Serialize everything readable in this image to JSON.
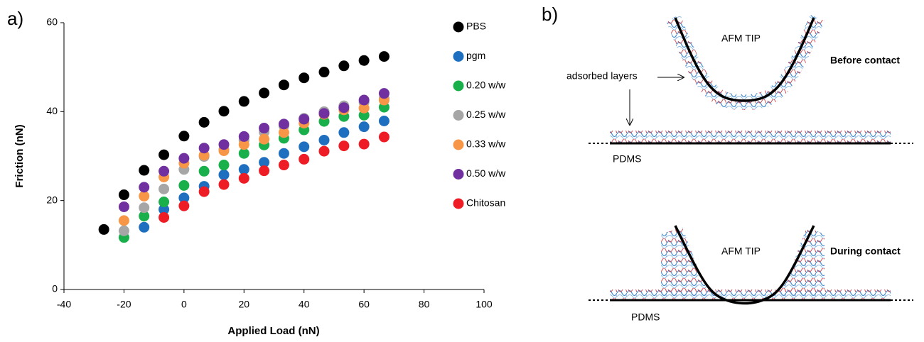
{
  "panel_labels": [
    "a)",
    "b)"
  ],
  "chart_data": {
    "type": "scatter",
    "xlabel": "Applied Load  (nN)",
    "ylabel": "Friction  (nN)",
    "xlim": [
      -40,
      100
    ],
    "xticks": [
      -40,
      -20,
      0,
      20,
      40,
      60,
      80,
      100
    ],
    "ylim": [
      0,
      60
    ],
    "yticks": [
      0,
      20,
      40,
      60
    ],
    "series": [
      {
        "name": "PBS",
        "color": "#000000",
        "x": [
          -26.7,
          -20,
          -13.3,
          -6.7,
          0,
          6.7,
          13.3,
          20,
          26.7,
          33.3,
          40,
          46.7,
          53.3,
          60,
          66.7
        ],
        "values": [
          13.5,
          21.3,
          26.8,
          30.3,
          34.5,
          37.6,
          40.1,
          42.3,
          44.2,
          46.0,
          47.6,
          48.9,
          50.3,
          51.5,
          52.4
        ]
      },
      {
        "name": "pgm",
        "color": "#1f6fc0",
        "x": [
          -13.3,
          -6.7,
          0,
          6.7,
          13.3,
          20,
          26.7,
          33.3,
          40,
          46.7,
          53.3,
          60,
          66.7
        ],
        "values": [
          14.0,
          18.0,
          20.6,
          23.2,
          25.8,
          27.0,
          28.6,
          30.6,
          32.1,
          33.6,
          35.3,
          36.6,
          37.9
        ]
      },
      {
        "name": "0.20 w/w",
        "color": "#19b04b",
        "x": [
          -20,
          -13.3,
          -6.7,
          0,
          6.7,
          13.3,
          20,
          26.7,
          33.3,
          40,
          46.7,
          53.3,
          60,
          66.7
        ],
        "values": [
          11.7,
          16.5,
          19.7,
          23.4,
          26.6,
          28.0,
          30.6,
          32.5,
          34.0,
          35.9,
          37.8,
          38.9,
          39.2,
          41.0
        ]
      },
      {
        "name": "0.25 w/w",
        "color": "#a6a6a6",
        "x": [
          -20,
          -13.3,
          -6.7,
          0,
          6.7,
          13.3,
          20,
          26.7,
          33.3,
          40,
          46.7,
          53.3,
          60,
          66.7
        ],
        "values": [
          13.2,
          18.4,
          22.6,
          27.0,
          29.9,
          31.5,
          33.6,
          35.4,
          36.8,
          38.5,
          40.0,
          41.3,
          42.1,
          43.0
        ]
      },
      {
        "name": "0.33 w/w",
        "color": "#f79646",
        "x": [
          -20,
          -13.3,
          -6.7,
          0,
          6.7,
          13.3,
          20,
          26.7,
          33.3,
          40,
          46.7,
          53.3,
          60,
          66.7
        ],
        "values": [
          15.5,
          21.0,
          25.3,
          28.4,
          30.2,
          31.2,
          32.6,
          33.8,
          35.3,
          37.4,
          39.4,
          40.4,
          40.8,
          42.6
        ]
      },
      {
        "name": "0.50 w/w",
        "color": "#7030a0",
        "x": [
          -20,
          -13.3,
          -6.7,
          0,
          6.7,
          13.3,
          20,
          26.7,
          33.3,
          40,
          46.7,
          53.3,
          60,
          66.7
        ],
        "values": [
          18.6,
          23.0,
          26.6,
          29.5,
          31.8,
          32.6,
          34.4,
          36.3,
          37.2,
          38.3,
          39.6,
          40.9,
          42.6,
          44.1
        ]
      },
      {
        "name": "Chitosan",
        "color": "#ee1c25",
        "x": [
          -6.7,
          0,
          6.7,
          13.3,
          20,
          26.7,
          33.3,
          40,
          46.7,
          53.3,
          60,
          66.7
        ],
        "values": [
          16.2,
          18.8,
          22.0,
          23.6,
          25.0,
          26.7,
          28.0,
          29.3,
          31.1,
          32.3,
          32.7,
          34.3
        ]
      }
    ]
  },
  "diagram": {
    "tip_top": "AFM TIP",
    "before": "Before contact",
    "layers": "adsorbed layers",
    "pdms_top": "PDMS",
    "tip_bottom": "AFM TIP",
    "during": "During contact",
    "pdms_bottom": "PDMS"
  }
}
